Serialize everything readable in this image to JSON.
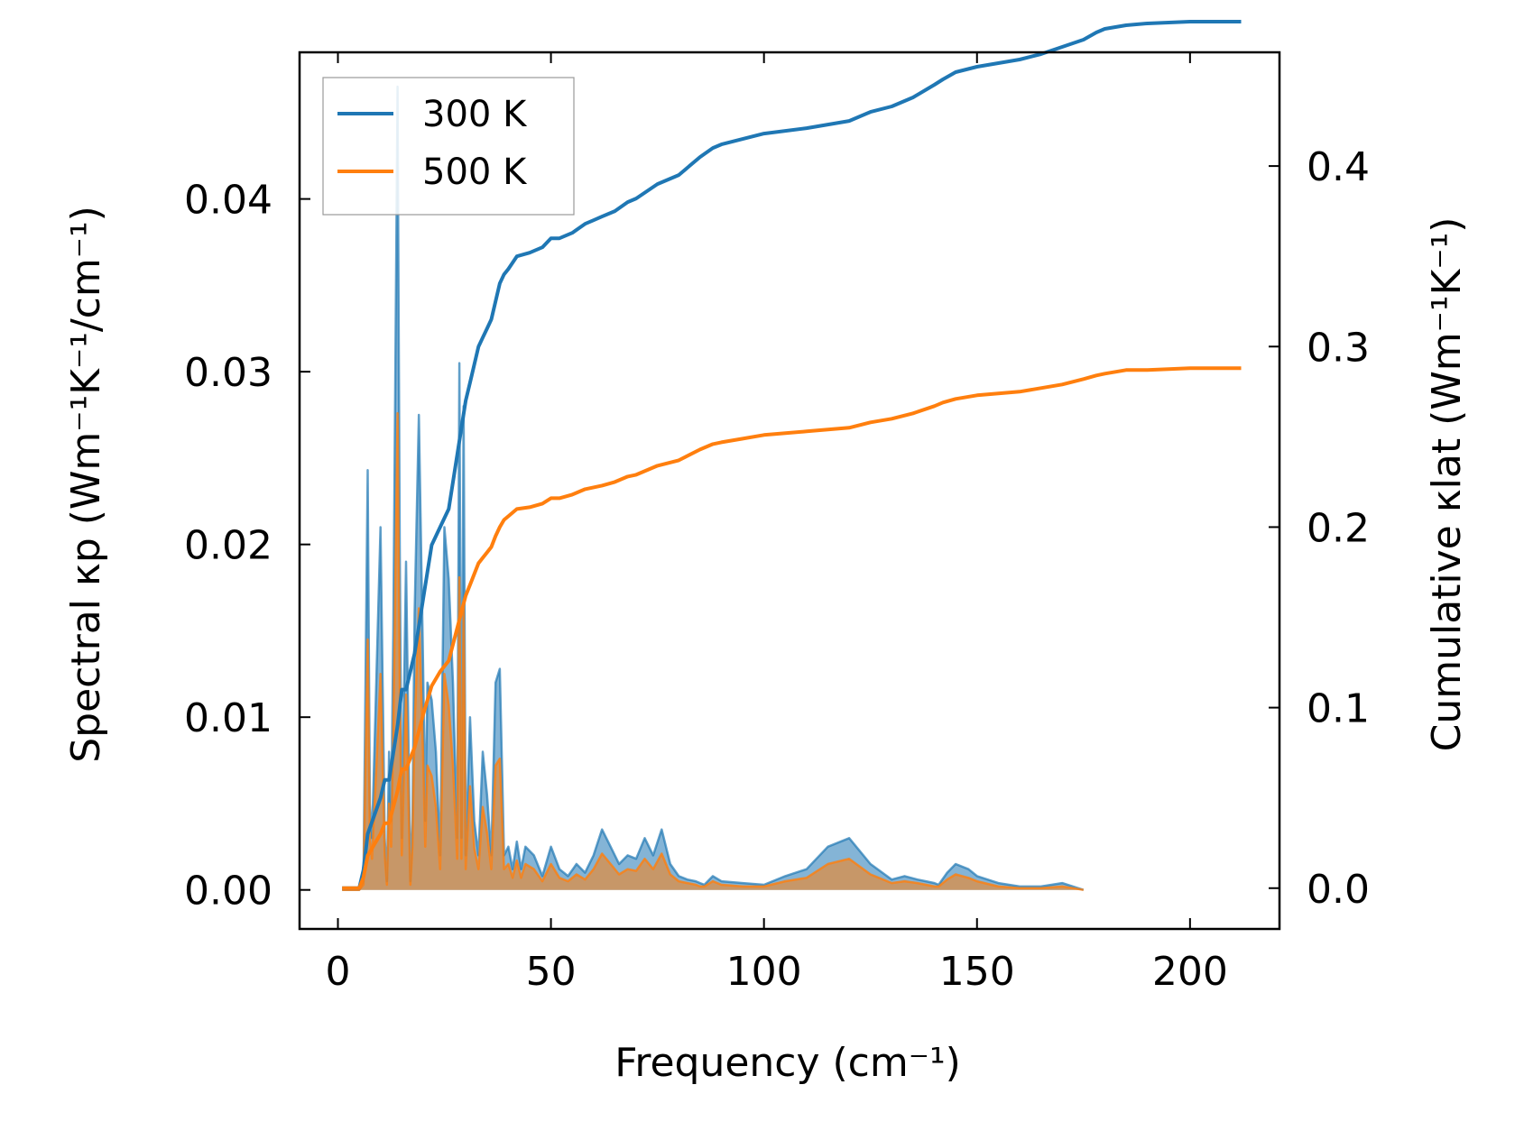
{
  "chart_data": {
    "type": "line",
    "title": "",
    "xlabel": "Frequency (cm⁻¹)",
    "ylabel_left": "Spectral κp (Wm⁻¹K⁻¹/cm⁻¹)",
    "ylabel_right": "Cumulative κlat (Wm⁻¹K⁻¹)",
    "xlim": [
      -9,
      221
    ],
    "ylim_left": [
      -0.00226,
      0.04849
    ],
    "ylim_right": [
      -0.0226,
      0.463
    ],
    "xticks": [
      "0",
      "50",
      "100",
      "150",
      "200"
    ],
    "xtick_values": [
      0,
      50,
      100,
      150,
      200
    ],
    "yticks_left": [
      "0.00",
      "0.01",
      "0.02",
      "0.03",
      "0.04"
    ],
    "ytick_values_left": [
      0,
      0.01,
      0.02,
      0.03,
      0.04
    ],
    "yticks_right": [
      "0.0",
      "0.1",
      "0.2",
      "0.3",
      "0.4"
    ],
    "ytick_values_right": [
      0,
      0.1,
      0.2,
      0.3,
      0.4
    ],
    "legend": {
      "position": "top-left",
      "entries": [
        "300 K",
        "500 K"
      ]
    },
    "colors": {
      "300K": "#1f77b4",
      "500K": "#ff7f0e",
      "fill_overlap": "#c49a6c"
    },
    "spectral": {
      "x": [
        1,
        5,
        6,
        7,
        7.5,
        8,
        9,
        10,
        11,
        11.5,
        12,
        12.5,
        13,
        14,
        14.5,
        15,
        16,
        17,
        17.5,
        18,
        19,
        20,
        20.5,
        21,
        22,
        23,
        24,
        25,
        26,
        27,
        28,
        28.5,
        29,
        29.5,
        30,
        31,
        32,
        33,
        34,
        35,
        36,
        37,
        38,
        39,
        40,
        41,
        42,
        43,
        44,
        46,
        48,
        50,
        52,
        54,
        56,
        58,
        60,
        62,
        64,
        66,
        68,
        70,
        72,
        74,
        76,
        78,
        80,
        82,
        84,
        85,
        86,
        88,
        90,
        95,
        100,
        105,
        110,
        115,
        120,
        125,
        130,
        133,
        136,
        138,
        140,
        141,
        143,
        145,
        148,
        150,
        155,
        160,
        165,
        170,
        175,
        178,
        180,
        185,
        190,
        200,
        205,
        212
      ],
      "300K": [
        0,
        0,
        0.0005,
        0.0243,
        0.005,
        0.003,
        0.012,
        0.021,
        0.003,
        0.0005,
        0.008,
        0.004,
        0.015,
        0.0465,
        0.02,
        0.003,
        0.019,
        0.0005,
        0.004,
        0.016,
        0.0275,
        0.013,
        0.004,
        0.012,
        0.011,
        0.008,
        0.002,
        0.021,
        0.018,
        0.012,
        0.003,
        0.0305,
        0.003,
        0.028,
        0.002,
        0.01,
        0.004,
        0.002,
        0.008,
        0.0055,
        0.002,
        0.012,
        0.0128,
        0.002,
        0.0025,
        0.0012,
        0.0028,
        0.0012,
        0.0025,
        0.002,
        0.0008,
        0.0025,
        0.0012,
        0.0008,
        0.0015,
        0.001,
        0.002,
        0.0035,
        0.0025,
        0.0015,
        0.002,
        0.0018,
        0.003,
        0.002,
        0.0035,
        0.0015,
        0.0008,
        0.0006,
        0.0005,
        0.0004,
        0.0003,
        0.0008,
        0.0005,
        0.0004,
        0.0003,
        0.0008,
        0.0012,
        0.0025,
        0.003,
        0.0015,
        0.0006,
        0.0008,
        0.0006,
        0.0005,
        0.0004,
        0.0003,
        0.001,
        0.0015,
        0.0012,
        0.0008,
        0.0004,
        0.0002,
        0.0002,
        0.0004,
        0
      ],
      "500K": [
        0,
        0,
        0.0003,
        0.0145,
        0.003,
        0.0018,
        0.007,
        0.0125,
        0.002,
        0.0003,
        0.005,
        0.0025,
        0.009,
        0.0276,
        0.012,
        0.002,
        0.0113,
        0.0003,
        0.0025,
        0.0095,
        0.0163,
        0.0078,
        0.0025,
        0.0072,
        0.0066,
        0.0048,
        0.0012,
        0.0125,
        0.0107,
        0.0072,
        0.0018,
        0.0181,
        0.0018,
        0.0166,
        0.0012,
        0.006,
        0.0024,
        0.0012,
        0.0048,
        0.0033,
        0.0012,
        0.0072,
        0.0076,
        0.0012,
        0.0015,
        0.0007,
        0.0017,
        0.0007,
        0.0015,
        0.0012,
        0.0005,
        0.0015,
        0.0007,
        0.0005,
        0.0009,
        0.0006,
        0.0012,
        0.0021,
        0.0015,
        0.0009,
        0.0012,
        0.0011,
        0.0018,
        0.0012,
        0.0021,
        0.0009,
        0.0005,
        0.0004,
        0.0003,
        0.0002,
        0.0002,
        0.0005,
        0.0003,
        0.0002,
        0.0002,
        0.0005,
        0.0007,
        0.0015,
        0.0018,
        0.0009,
        0.0004,
        0.0005,
        0.0004,
        0.0003,
        0.0002,
        0.0002,
        0.0006,
        0.0009,
        0.0007,
        0.0005,
        0.0002,
        0.0001,
        0.0001,
        0.0002,
        0
      ]
    },
    "cumulative": {
      "x": [
        1,
        5,
        6,
        7,
        10,
        11,
        12,
        14,
        15,
        16,
        18,
        20,
        22,
        24,
        26,
        28,
        30,
        31,
        32,
        33,
        34,
        35,
        36,
        37,
        38,
        39,
        40,
        42,
        45,
        48,
        50,
        52,
        55,
        58,
        60,
        62,
        65,
        68,
        70,
        75,
        80,
        85,
        88,
        90,
        95,
        100,
        110,
        120,
        125,
        130,
        135,
        140,
        142,
        145,
        150,
        155,
        160,
        165,
        170,
        175,
        178,
        180,
        185,
        190,
        200,
        212
      ],
      "300K": [
        0,
        0,
        0.01,
        0.03,
        0.05,
        0.06,
        0.06,
        0.09,
        0.11,
        0.11,
        0.13,
        0.16,
        0.19,
        0.2,
        0.21,
        0.24,
        0.27,
        0.28,
        0.29,
        0.3,
        0.305,
        0.31,
        0.315,
        0.325,
        0.335,
        0.34,
        0.343,
        0.35,
        0.352,
        0.355,
        0.36,
        0.36,
        0.363,
        0.368,
        0.37,
        0.372,
        0.375,
        0.38,
        0.382,
        0.39,
        0.395,
        0.405,
        0.41,
        0.412,
        0.415,
        0.418,
        0.421,
        0.425,
        0.43,
        0.433,
        0.438,
        0.445,
        0.448,
        0.452,
        0.455,
        0.457,
        0.459,
        0.462,
        0.466,
        0.47,
        0.474,
        0.476,
        0.478,
        0.479,
        0.48,
        0.48
      ],
      "500K": [
        0,
        0,
        0.006,
        0.018,
        0.03,
        0.036,
        0.036,
        0.054,
        0.066,
        0.066,
        0.078,
        0.096,
        0.112,
        0.12,
        0.126,
        0.144,
        0.162,
        0.168,
        0.174,
        0.18,
        0.183,
        0.186,
        0.189,
        0.195,
        0.2,
        0.204,
        0.206,
        0.21,
        0.211,
        0.213,
        0.216,
        0.216,
        0.218,
        0.221,
        0.222,
        0.223,
        0.225,
        0.228,
        0.229,
        0.234,
        0.237,
        0.243,
        0.246,
        0.247,
        0.249,
        0.251,
        0.253,
        0.255,
        0.258,
        0.26,
        0.263,
        0.267,
        0.269,
        0.271,
        0.273,
        0.274,
        0.275,
        0.277,
        0.279,
        0.282,
        0.284,
        0.285,
        0.287,
        0.287,
        0.288,
        0.288
      ]
    }
  }
}
